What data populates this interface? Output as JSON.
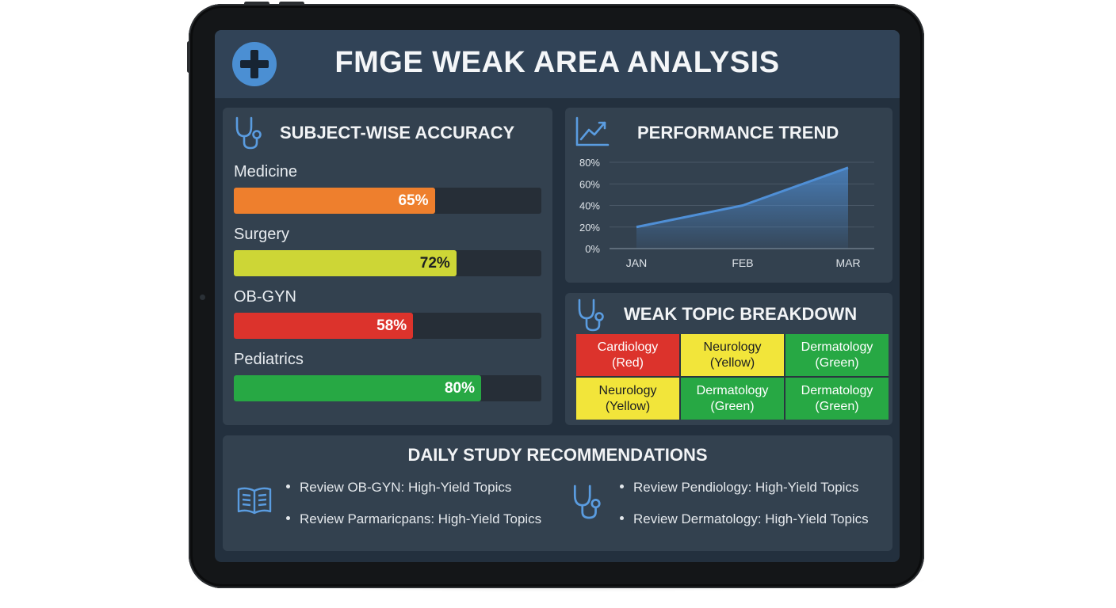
{
  "header": {
    "title": "FMGE WEAK AREA ANALYSIS",
    "logo_icon": "medical-cross-icon"
  },
  "accuracy": {
    "title": "SUBJECT-WISE ACCURACY",
    "icon": "stethoscope-icon",
    "subjects": [
      {
        "name": "Medicine",
        "value": 65,
        "value_label": "65%",
        "color": "#ee7f2d",
        "text_color": "#ffffff"
      },
      {
        "name": "Surgery",
        "value": 72,
        "value_label": "72%",
        "color": "#cdd636",
        "text_color": "#1c1f22"
      },
      {
        "name": "OB-GYN",
        "value": 58,
        "value_label": "58%",
        "color": "#dc332c",
        "text_color": "#ffffff"
      },
      {
        "name": "Pediatrics",
        "value": 80,
        "value_label": "80%",
        "color": "#27a844",
        "text_color": "#ffffff"
      }
    ]
  },
  "trend": {
    "title": "PERFORMANCE TREND",
    "icon": "line-chart-icon",
    "chart_data": {
      "type": "area",
      "categories": [
        "JAN",
        "FEB",
        "MAR"
      ],
      "series": [
        {
          "values": [
            20,
            40,
            75
          ]
        }
      ],
      "y_ticks": [
        "0%",
        "20%",
        "40%",
        "60%",
        "80%"
      ],
      "ylim": [
        0,
        80
      ],
      "grid": true,
      "line_color": "#4f8fd6"
    }
  },
  "breakdown": {
    "title": "WEAK TOPIC BREAKDOWN",
    "icon": "stethoscope-icon",
    "cells": [
      {
        "line1": "Cardiology",
        "line2": "(Red)",
        "color": "#dc332c",
        "text_color": "#ffffff"
      },
      {
        "line1": "Neurology",
        "line2": "(Yellow)",
        "color": "#f2e53a",
        "text_color": "#1c1f22"
      },
      {
        "line1": "Dermatology",
        "line2": "(Green)",
        "color": "#27a844",
        "text_color": "#ffffff"
      },
      {
        "line1": "Neurology",
        "line2": "(Yellow)",
        "color": "#f2e53a",
        "text_color": "#1c1f22"
      },
      {
        "line1": "Dermatology",
        "line2": "(Green)",
        "color": "#27a844",
        "text_color": "#ffffff"
      },
      {
        "line1": "Dermatology",
        "line2": "(Green)",
        "color": "#27a844",
        "text_color": "#ffffff"
      }
    ]
  },
  "recommendations": {
    "title": "DAILY STUDY RECOMMENDATIONS",
    "left_icon": "open-book-icon",
    "right_icon": "stethoscope-icon",
    "left_items": [
      "Review OB-GYN: High-Yield Topics",
      "Review Parmaricpans: High-Yield Topics"
    ],
    "right_items": [
      "Review Pendiology: High-Yield Topics",
      "Review Dermatology: High-Yield Topics"
    ]
  }
}
